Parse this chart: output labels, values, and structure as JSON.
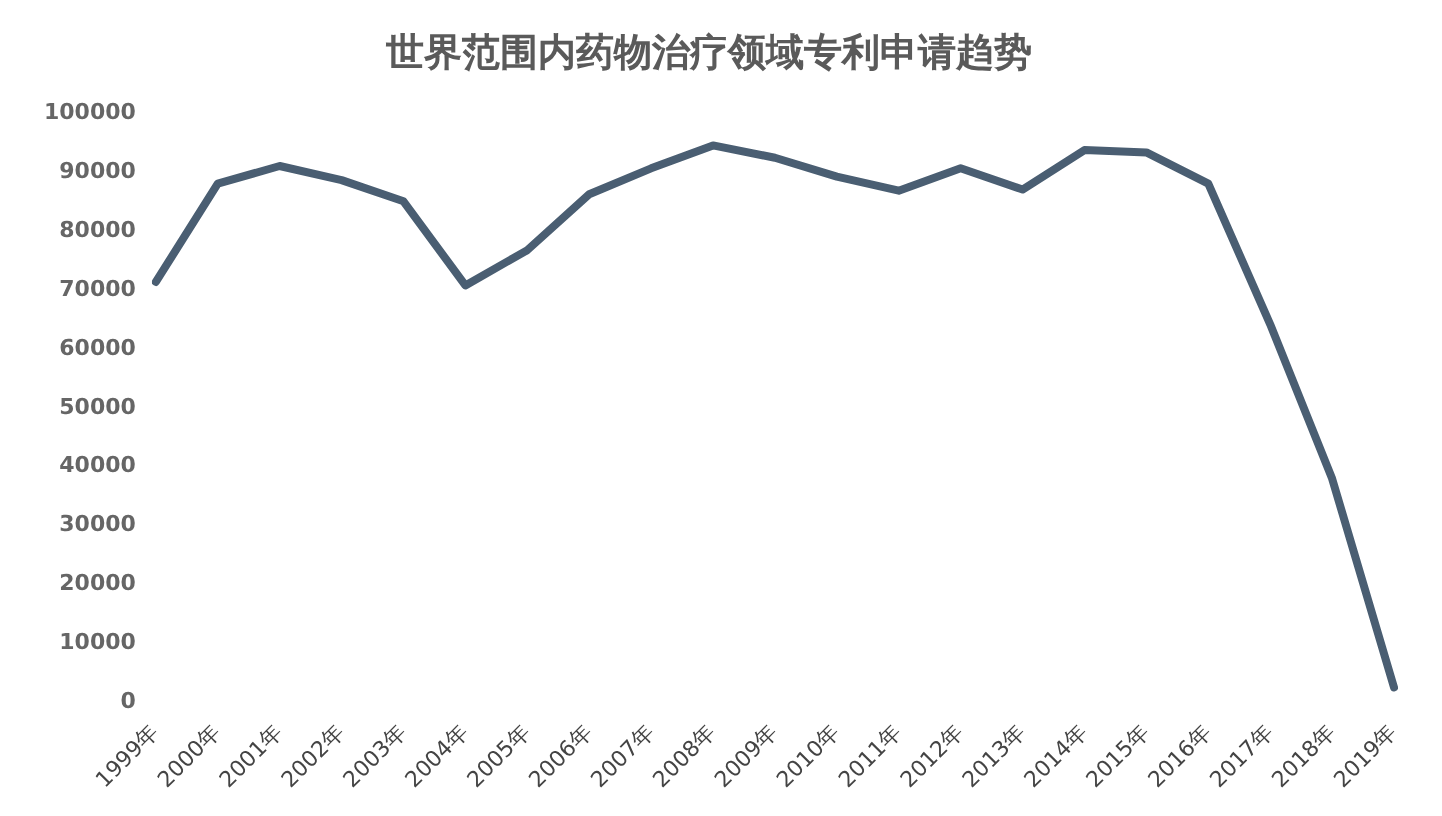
{
  "chart_data": {
    "type": "line",
    "title": "世界范围内药物治疗领域专利申请趋势",
    "categories": [
      "1999年",
      "2000年",
      "2001年",
      "2002年",
      "2003年",
      "2004年",
      "2005年",
      "2006年",
      "2007年",
      "2008年",
      "2009年",
      "2010年",
      "2011年",
      "2012年",
      "2013年",
      "2014年",
      "2015年",
      "2016年",
      "2017年",
      "2018年",
      "2019年"
    ],
    "series": [
      {
        "color": "#4a5e72",
        "values": [
          71400,
          88100,
          91100,
          88700,
          85100,
          70800,
          76800,
          86300,
          90700,
          94600,
          92500,
          89300,
          86900,
          90700,
          87100,
          93800,
          93400,
          88100,
          64200,
          38000,
          2500
        ]
      }
    ],
    "ylim": [
      0,
      100000
    ],
    "yticks": [
      0,
      10000,
      20000,
      30000,
      40000,
      50000,
      60000,
      70000,
      80000,
      90000,
      100000
    ],
    "grid": false,
    "legend": false,
    "marker": "none",
    "line_style": "solid"
  }
}
